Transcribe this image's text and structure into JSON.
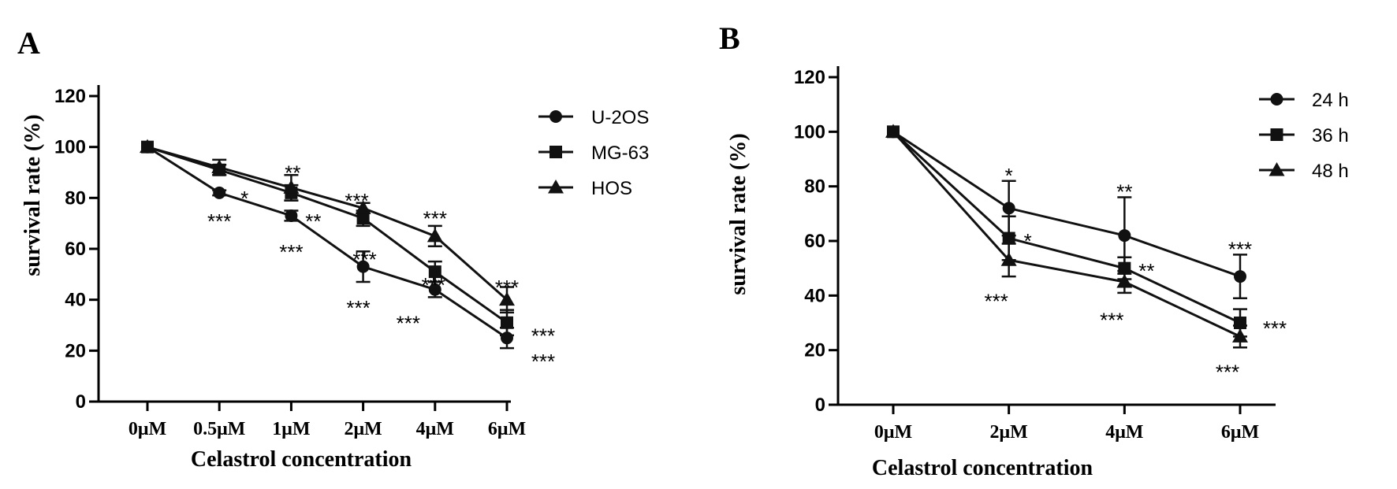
{
  "chart_data": [
    {
      "type": "line",
      "panel_label": "A",
      "xlabel": "Celastrol concentration",
      "ylabel": "survival rate (%)",
      "categories": [
        "0μM",
        "0.5μM",
        "1μM",
        "2μM",
        "4μM",
        "6μM"
      ],
      "ylim": [
        0,
        120
      ],
      "yticks": [
        0,
        20,
        40,
        60,
        80,
        100,
        120
      ],
      "grid": false,
      "legend_placement": "top-right",
      "series": [
        {
          "name": "U-2OS",
          "marker": "circle",
          "values": [
            100,
            82,
            73,
            53,
            44,
            25
          ],
          "errors": [
            0,
            1,
            2,
            6,
            3,
            4
          ]
        },
        {
          "name": "MG-63",
          "marker": "square",
          "values": [
            100,
            91,
            82,
            72,
            51,
            31
          ],
          "errors": [
            0,
            2,
            3,
            3,
            4,
            5
          ]
        },
        {
          "name": "HOS",
          "marker": "triangle",
          "values": [
            100,
            92,
            84,
            76,
            65,
            40
          ],
          "errors": [
            0,
            3,
            5,
            2,
            4,
            5
          ]
        }
      ],
      "annotations": [
        {
          "text": "*",
          "x": "0.5μM",
          "y": 82
        },
        {
          "text": "***",
          "x": "0.5μM",
          "y": 73
        },
        {
          "text": "**",
          "x": "1μM",
          "y": 92
        },
        {
          "text": "**",
          "x": "1μM",
          "y": 73
        },
        {
          "text": "***",
          "x": "1μM",
          "y": 61
        },
        {
          "text": "***",
          "x": "2μM",
          "y": 81
        },
        {
          "text": "***",
          "x": "2μM",
          "y": 58
        },
        {
          "text": "***",
          "x": "2μM",
          "y": 39
        },
        {
          "text": "***",
          "x": "4μM",
          "y": 74
        },
        {
          "text": "***",
          "x": "4μM",
          "y": 48
        },
        {
          "text": "***",
          "x": "4μM",
          "y": 33
        },
        {
          "text": "***",
          "x": "6μM",
          "y": 47
        },
        {
          "text": "***",
          "x": "6μM",
          "y": 28
        },
        {
          "text": "***",
          "x": "6μM",
          "y": 18
        }
      ]
    },
    {
      "type": "line",
      "panel_label": "B",
      "xlabel": "Celastrol concentration",
      "ylabel": "survival rate (%)",
      "categories": [
        "0μM",
        "2μM",
        "4μM",
        "6μM"
      ],
      "ylim": [
        0,
        120
      ],
      "yticks": [
        0,
        20,
        40,
        60,
        80,
        100,
        120
      ],
      "grid": false,
      "legend_placement": "top-right",
      "series": [
        {
          "name": "24 h",
          "marker": "circle",
          "values": [
            100,
            72,
            62,
            47
          ],
          "errors": [
            0,
            10,
            14,
            8
          ]
        },
        {
          "name": "36 h",
          "marker": "square",
          "values": [
            100,
            61,
            50,
            30
          ],
          "errors": [
            0,
            8,
            4,
            5
          ]
        },
        {
          "name": "48 h",
          "marker": "triangle",
          "values": [
            100,
            53,
            45,
            25
          ],
          "errors": [
            0,
            6,
            4,
            4
          ]
        }
      ],
      "annotations": [
        {
          "text": "*",
          "x": "2μM",
          "y": 86
        },
        {
          "text": "*",
          "x": "2μM",
          "y": 62
        },
        {
          "text": "***",
          "x": "2μM",
          "y": 40
        },
        {
          "text": "**",
          "x": "4μM",
          "y": 80
        },
        {
          "text": "**",
          "x": "4μM",
          "y": 51
        },
        {
          "text": "***",
          "x": "4μM",
          "y": 33
        },
        {
          "text": "***",
          "x": "6μM",
          "y": 59
        },
        {
          "text": "***",
          "x": "6μM",
          "y": 30
        },
        {
          "text": "***",
          "x": "6μM",
          "y": 14
        }
      ]
    }
  ]
}
